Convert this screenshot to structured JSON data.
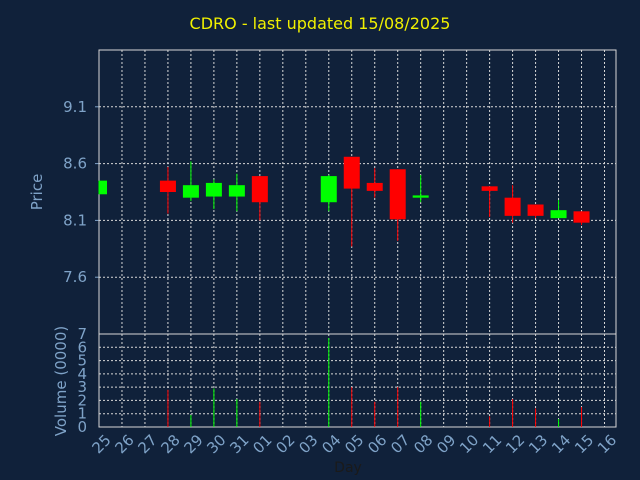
{
  "chart_data": {
    "type": "candlestick",
    "title": "CDRO - last updated 15/08/2025",
    "price_panel": {
      "ylabel": "Price",
      "ylim": [
        7.1,
        9.6
      ],
      "yticks": [
        7.6,
        8.1,
        8.6,
        9.1
      ],
      "ytick_labels": [
        "7.6",
        "8.1",
        "8.6",
        "9.1"
      ]
    },
    "volume_panel": {
      "ylabel": "Volume (0000)",
      "ylim": [
        0,
        7
      ],
      "yticks": [
        0,
        1,
        2,
        3,
        4,
        5,
        6,
        7
      ],
      "ytick_labels": [
        "0",
        "1",
        "2",
        "3",
        "4",
        "5",
        "6",
        "7"
      ]
    },
    "xlabel": "Day",
    "x_labels": [
      "25",
      "26",
      "27",
      "28",
      "29",
      "30",
      "31",
      "01",
      "02",
      "03",
      "04",
      "05",
      "06",
      "07",
      "08",
      "09",
      "10",
      "11",
      "12",
      "13",
      "14",
      "15",
      "16"
    ],
    "grid": true,
    "colors": {
      "up": "#00ff00",
      "down": "#ff0000",
      "grid": "#d8d8d8",
      "axis_text": "#7fa3c8",
      "title": "#f0f000",
      "background": "#10213a"
    },
    "candles": [
      {
        "day": "25",
        "open": 8.33,
        "high": 8.45,
        "low": 8.33,
        "close": 8.45,
        "volume": 0.0
      },
      {
        "day": "28",
        "open": 8.45,
        "high": 8.57,
        "low": 8.16,
        "close": 8.35,
        "volume": 2.8
      },
      {
        "day": "29",
        "open": 8.3,
        "high": 8.62,
        "low": 8.27,
        "close": 8.41,
        "volume": 0.9
      },
      {
        "day": "30",
        "open": 8.31,
        "high": 8.46,
        "low": 8.2,
        "close": 8.43,
        "volume": 2.9
      },
      {
        "day": "31",
        "open": 8.31,
        "high": 8.51,
        "low": 8.18,
        "close": 8.41,
        "volume": 2.1
      },
      {
        "day": "01",
        "open": 8.49,
        "high": 8.49,
        "low": 8.1,
        "close": 8.26,
        "volume": 1.9
      },
      {
        "day": "04",
        "open": 8.26,
        "high": 8.5,
        "low": 8.18,
        "close": 8.49,
        "volume": 6.7
      },
      {
        "day": "05",
        "open": 8.66,
        "high": 8.66,
        "low": 7.87,
        "close": 8.38,
        "volume": 3.0
      },
      {
        "day": "06",
        "open": 8.43,
        "high": 8.56,
        "low": 8.3,
        "close": 8.36,
        "volume": 1.9
      },
      {
        "day": "07",
        "open": 8.55,
        "high": 8.55,
        "low": 7.92,
        "close": 8.11,
        "volume": 3.0
      },
      {
        "day": "08",
        "open": 8.3,
        "high": 8.5,
        "low": 8.26,
        "close": 8.32,
        "volume": 1.9
      },
      {
        "day": "11",
        "open": 8.4,
        "high": 8.4,
        "low": 8.13,
        "close": 8.36,
        "volume": 0.8
      },
      {
        "day": "12",
        "open": 8.3,
        "high": 8.41,
        "low": 8.08,
        "close": 8.14,
        "volume": 2.1
      },
      {
        "day": "13",
        "open": 8.24,
        "high": 8.24,
        "low": 8.12,
        "close": 8.14,
        "volume": 1.4
      },
      {
        "day": "14",
        "open": 8.12,
        "high": 8.28,
        "low": 8.12,
        "close": 8.19,
        "volume": 0.6
      },
      {
        "day": "15",
        "open": 8.18,
        "high": 8.18,
        "low": 8.06,
        "close": 8.08,
        "volume": 1.5
      }
    ]
  }
}
